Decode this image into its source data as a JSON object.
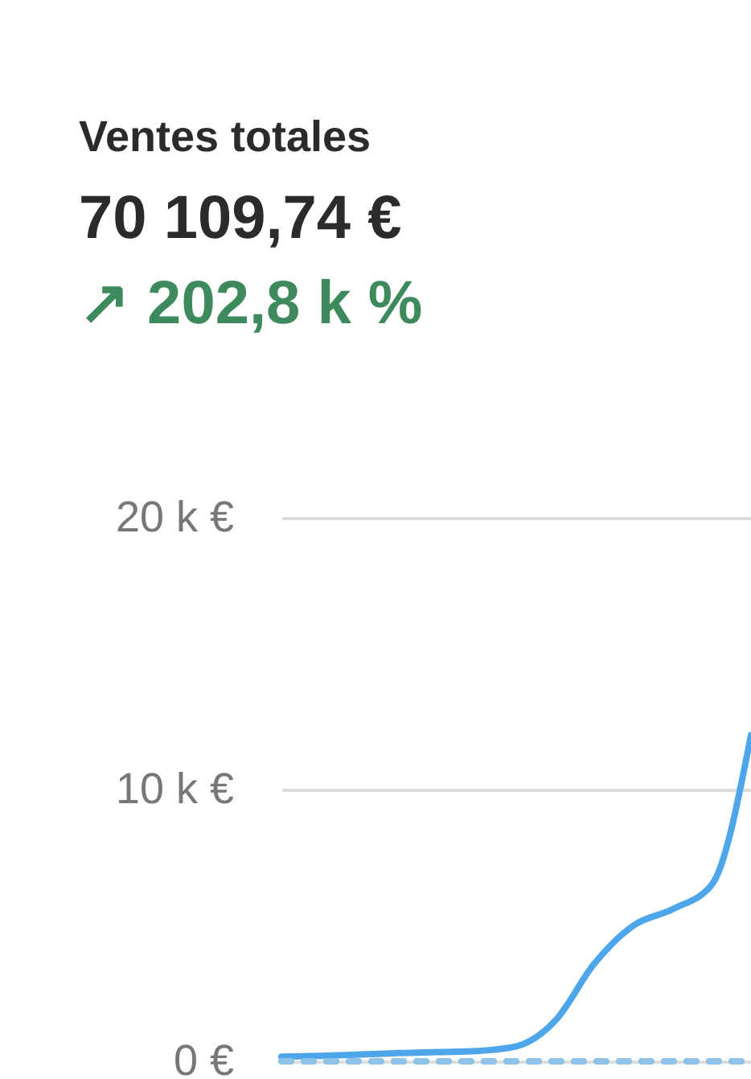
{
  "chart_data": {
    "type": "line",
    "title": "Ventes totales",
    "subtitle": "70 109,74 €",
    "annotations": [
      "↗ 202,8 k %"
    ],
    "categories": [
      null,
      null,
      null,
      null,
      null,
      null,
      null,
      null,
      null,
      null,
      null,
      null,
      null
    ],
    "series": [
      {
        "color": "#4ea6ea",
        "line_style": "solid",
        "values": [
          170,
          200,
          250,
          300,
          340,
          380,
          550,
          1500,
          3600,
          5000,
          5600,
          6500,
          12000
        ]
      },
      {
        "color": "#8cc3e6",
        "line_style": "dashed",
        "values": [
          0,
          0,
          0,
          0,
          0,
          0,
          0,
          0,
          0,
          0,
          0,
          0,
          0
        ]
      }
    ],
    "ylim": [
      0,
      20000
    ],
    "yticks": [
      {
        "value": 0,
        "label": "0 €"
      },
      {
        "value": 10000,
        "label": "10 k €"
      },
      {
        "value": 20000,
        "label": "20 k €"
      }
    ],
    "grid": "y",
    "marker": "none",
    "tick_labels": "y"
  }
}
